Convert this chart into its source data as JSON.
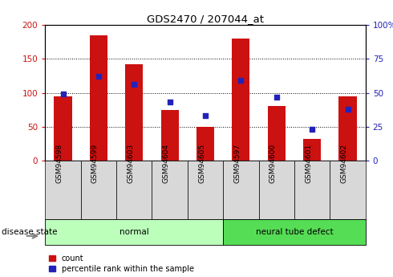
{
  "title": "GDS2470 / 207044_at",
  "samples": [
    "GSM94598",
    "GSM94599",
    "GSM94603",
    "GSM94604",
    "GSM94605",
    "GSM94597",
    "GSM94600",
    "GSM94601",
    "GSM94602"
  ],
  "counts": [
    95,
    185,
    142,
    75,
    50,
    180,
    80,
    32,
    95
  ],
  "percentiles": [
    49,
    62,
    56,
    43,
    33,
    59,
    47,
    23,
    38
  ],
  "groups": [
    {
      "label": "normal",
      "start": 0,
      "end": 5,
      "color": "#bbffbb"
    },
    {
      "label": "neural tube defect",
      "start": 5,
      "end": 9,
      "color": "#55dd55"
    }
  ],
  "bar_color": "#cc1111",
  "dot_color": "#2222bb",
  "ylim_left": [
    0,
    200
  ],
  "ylim_right": [
    0,
    100
  ],
  "yticks_left": [
    0,
    50,
    100,
    150,
    200
  ],
  "yticks_right": [
    0,
    25,
    50,
    75,
    100
  ],
  "yticklabels_right": [
    "0",
    "25",
    "50",
    "75",
    "100%"
  ],
  "legend_count_label": "count",
  "legend_pct_label": "percentile rank within the sample",
  "disease_state_label": "disease state",
  "tick_area_color": "#d8d8d8",
  "bar_width": 0.5
}
